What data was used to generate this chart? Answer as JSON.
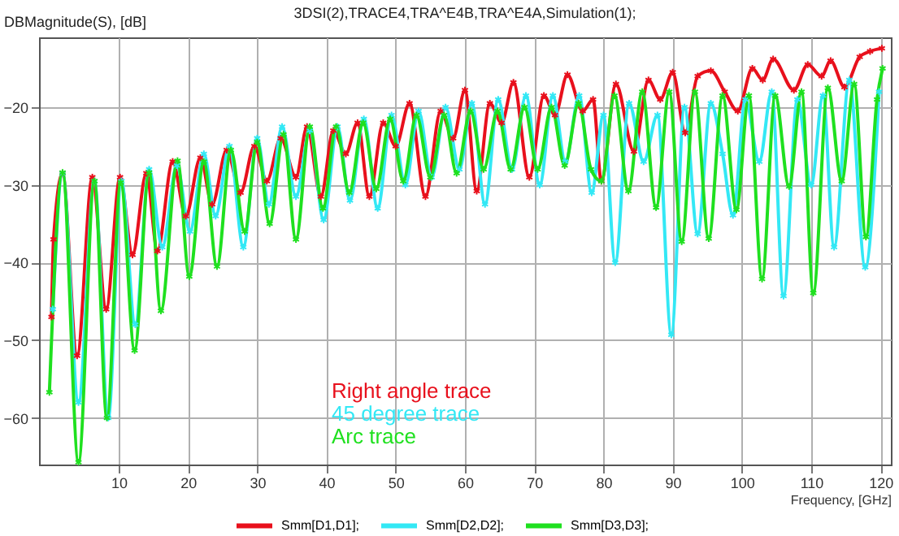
{
  "chart_data": {
    "type": "line",
    "title": "3DSI(2),TRACE4,TRA^E4B,TRA^E4A,Simulation(1);",
    "xlabel": "Frequency, [GHz]",
    "ylabel": "DBMagnitude(S), [dB]",
    "xlim": [
      -1.5,
      121.5
    ],
    "ylim": [
      -66,
      -11
    ],
    "xticks": [
      10,
      20,
      30,
      40,
      50,
      60,
      70,
      80,
      90,
      100,
      110,
      120
    ],
    "yticks": [
      -60,
      -50,
      -40,
      -30,
      -20
    ],
    "grid": true,
    "legend": "bottom",
    "marker": "cross",
    "line_style": "solid",
    "annotations": [
      "Right angle trace",
      "45 degree trace",
      "Arc trace"
    ],
    "series": [
      {
        "name": "Smm[D1,D1];",
        "color": "#e8101c",
        "x": [
          0.3,
          0.6,
          1.9,
          4.0,
          6.2,
          8.2,
          10.2,
          12.0,
          14.0,
          15.6,
          17.8,
          19.7,
          21.8,
          23.5,
          25.6,
          27.6,
          29.6,
          31.4,
          33.4,
          35.6,
          37.2,
          39.2,
          41.0,
          42.8,
          44.5,
          46.2,
          48.2,
          50.0,
          52.0,
          54.3,
          56.5,
          58.3,
          60.0,
          61.7,
          63.6,
          65.3,
          67.0,
          69.3,
          71.4,
          73.0,
          74.8,
          77.0,
          78.5,
          79.7,
          81.8,
          84.4,
          86.5,
          88.2,
          90.0,
          91.8,
          93.6,
          95.5,
          97.5,
          99.4,
          101.5,
          103.0,
          104.5,
          107.5,
          109.5,
          111.5,
          112.8,
          114.8,
          117.0,
          118.5,
          120.2
        ],
        "values": [
          -47,
          -37,
          -28.5,
          -52,
          -29,
          -46,
          -29,
          -39,
          -28.5,
          -38.5,
          -27,
          -34,
          -26.5,
          -32.5,
          -25.5,
          -31,
          -25,
          -29.5,
          -24,
          -29,
          -22.5,
          -31.5,
          -23,
          -26,
          -22,
          -31.5,
          -22,
          -25,
          -19.5,
          -31.5,
          -20.5,
          -24,
          -17.8,
          -30.8,
          -19.5,
          -22,
          -16.8,
          -29,
          -18.5,
          -21,
          -15.8,
          -20.5,
          -19,
          -29.5,
          -17,
          -25.7,
          -16.5,
          -19,
          -15.5,
          -23.3,
          -16,
          -15.3,
          -18,
          -20.5,
          -15,
          -16.5,
          -13.8,
          -17.8,
          -14.5,
          -16,
          -14,
          -17.4,
          -13.5,
          -12.8,
          -12.4
        ]
      },
      {
        "name": "Smm[D2,D2];",
        "color": "#33e8f5",
        "x": [
          0.5,
          1.9,
          4.2,
          6.5,
          8.5,
          10.4,
          12.4,
          14.4,
          16.3,
          18.4,
          20.3,
          22.3,
          24.0,
          26.0,
          28.0,
          30.0,
          31.7,
          33.6,
          35.6,
          37.6,
          39.6,
          41.6,
          43.4,
          45.4,
          47.4,
          49.4,
          51.4,
          53.3,
          55.2,
          57.2,
          59.2,
          61.0,
          62.9,
          64.8,
          66.8,
          68.8,
          70.8,
          72.7,
          74.5,
          76.5,
          78.3,
          80.0,
          81.7,
          83.7,
          85.8,
          87.8,
          89.8,
          91.7,
          93.6,
          95.5,
          97.2,
          98.7,
          100.5,
          102.5,
          104.3,
          106.0,
          108.0,
          110.0,
          111.7,
          113.3,
          115.5,
          117.8,
          119.8
        ],
        "values": [
          -46,
          -28.5,
          -58,
          -29.5,
          -60,
          -29.5,
          -48,
          -28,
          -38,
          -27.5,
          -36,
          -26,
          -34,
          -25,
          -38,
          -24,
          -32.5,
          -22.5,
          -31.5,
          -23,
          -34.5,
          -22.5,
          -32,
          -21.5,
          -33,
          -21,
          -30,
          -20.5,
          -29,
          -20,
          -28,
          -19.5,
          -32.5,
          -19,
          -28,
          -18.5,
          -30,
          -18.5,
          -27,
          -18.5,
          -31,
          -21,
          -40,
          -19.5,
          -27,
          -21,
          -49.3,
          -20,
          -36.3,
          -19.5,
          -26,
          -33.9,
          -19,
          -27,
          -18,
          -44.3,
          -19,
          -30,
          -18.5,
          -38,
          -16.5,
          -40.6,
          -18
        ]
      },
      {
        "name": "Smm[D3,D3];",
        "color": "#1fe01f",
        "x": [
          0.0,
          1.9,
          4.2,
          6.5,
          8.3,
          10.3,
          12.3,
          14.4,
          16.1,
          18.5,
          20.2,
          22.3,
          24.2,
          26.2,
          28.2,
          30.0,
          31.8,
          33.8,
          35.6,
          37.6,
          39.5,
          41.4,
          43.3,
          45.3,
          47.2,
          49.2,
          51.1,
          53.0,
          55.0,
          57.0,
          58.8,
          60.8,
          62.7,
          64.7,
          66.6,
          68.6,
          70.5,
          72.5,
          74.4,
          76.4,
          78.2,
          79.7,
          81.6,
          83.6,
          85.6,
          87.6,
          89.5,
          91.3,
          93.2,
          95.2,
          97.2,
          99.2,
          101.0,
          102.9,
          104.8,
          106.8,
          108.6,
          110.3,
          112.4,
          114.4,
          116.2,
          117.9,
          119.5,
          120.3
        ],
        "values": [
          -56.7,
          -28.4,
          -65.7,
          -29.5,
          -60,
          -29.7,
          -51.3,
          -28.4,
          -46.2,
          -26.9,
          -41.8,
          -27,
          -40.5,
          -25.5,
          -36,
          -24.5,
          -35,
          -23.5,
          -37,
          -22.5,
          -33,
          -22.5,
          -31,
          -22,
          -30.5,
          -21.5,
          -29.5,
          -21,
          -29,
          -21,
          -28.5,
          -20.5,
          -28,
          -20.5,
          -28,
          -20,
          -28,
          -20,
          -27.5,
          -19.5,
          -28,
          -29.5,
          -18.5,
          -30.8,
          -18,
          -32.9,
          -18,
          -37.3,
          -18,
          -36.9,
          -18.5,
          -33.2,
          -18.5,
          -42.1,
          -18.5,
          -30.2,
          -18,
          -43.9,
          -17.5,
          -29.5,
          -17,
          -36.7,
          -19,
          -15
        ]
      }
    ]
  }
}
